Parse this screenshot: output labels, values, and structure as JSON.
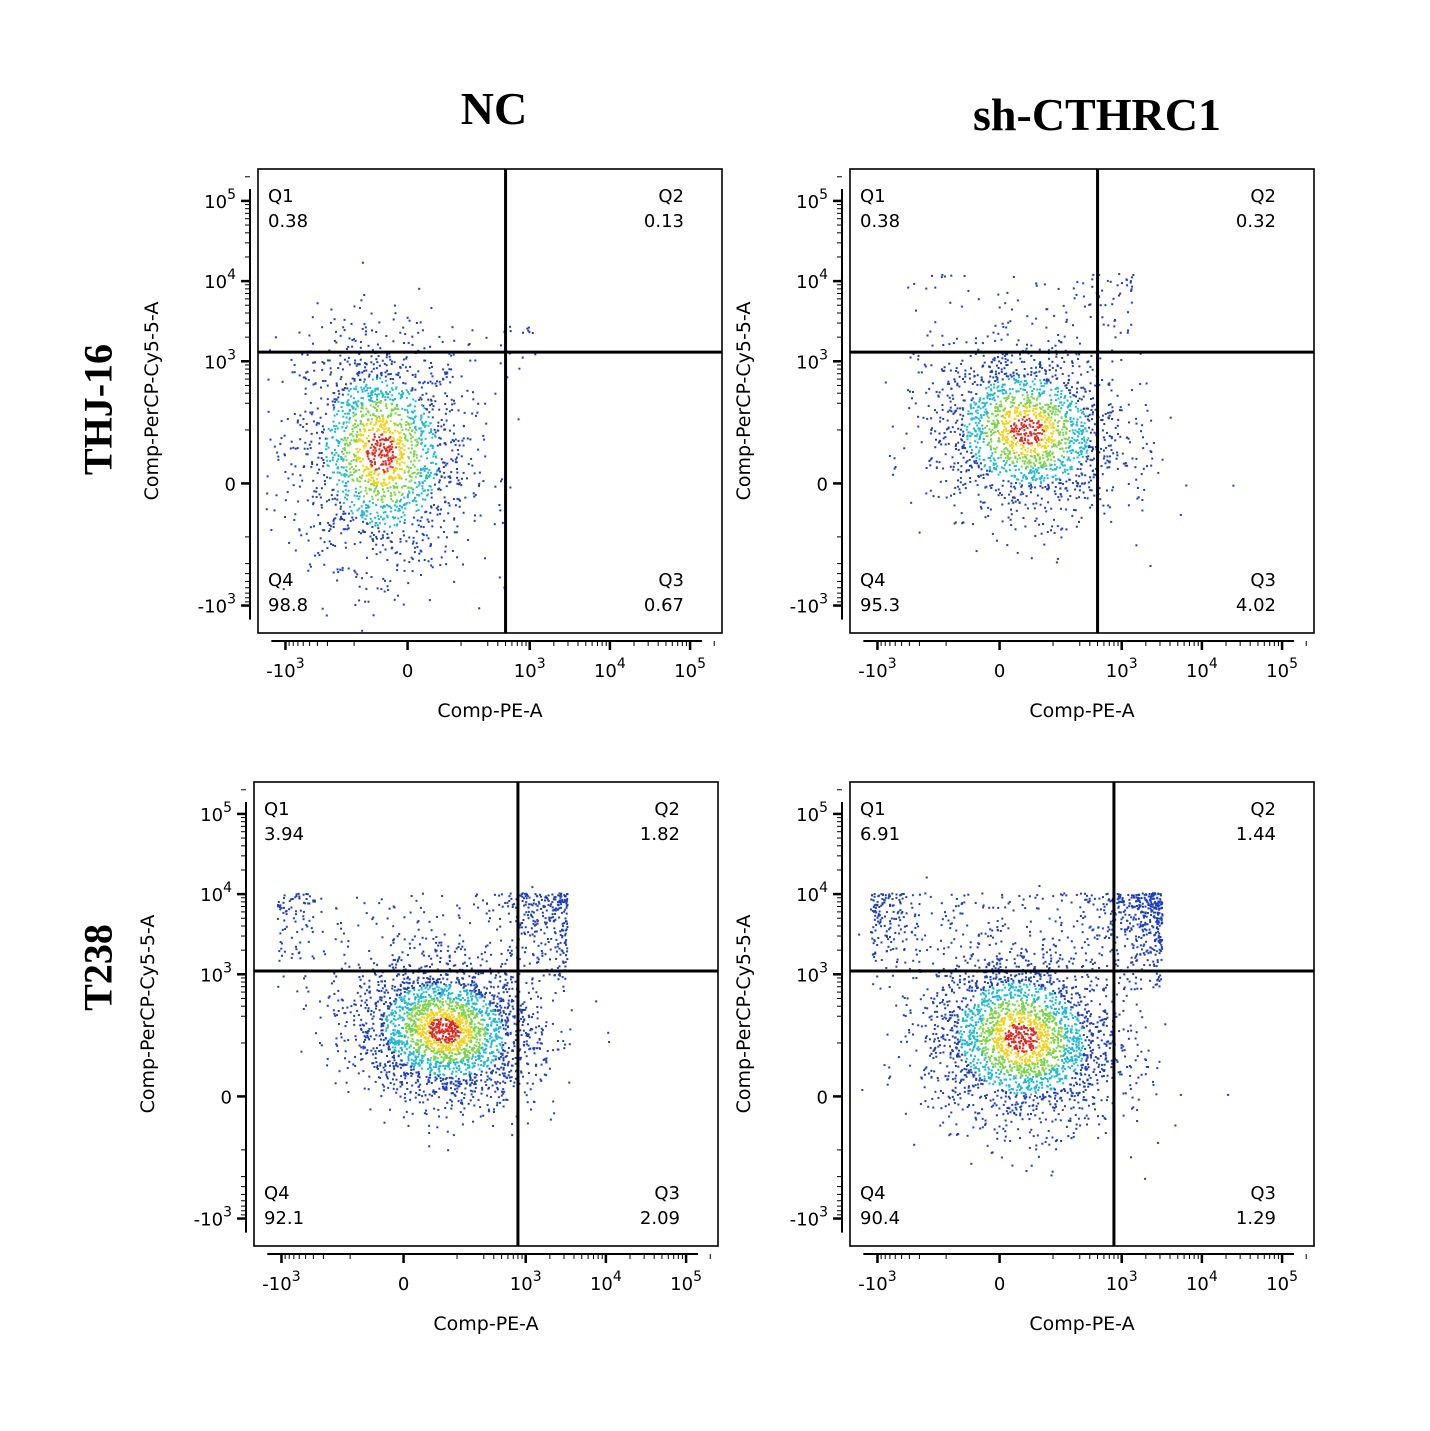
{
  "column_headers": [
    "NC",
    "sh-CTHRC1"
  ],
  "row_headers": [
    "THJ-16",
    "T238"
  ],
  "colors": {
    "density_low": "#1f3fbf",
    "density_mid": "#22b8d0",
    "density_midhigh": "#7dd44a",
    "density_high": "#f2d21b",
    "density_peak": "#e0281e",
    "gate_line": "#000000"
  },
  "chart_data": [
    {
      "type": "scatter",
      "panel": "THJ-16 / NC",
      "xlabel": "Comp-PE-A",
      "ylabel": "Comp-PerCP-Cy5-5-A",
      "x_scale": "biexponential",
      "y_scale": "biexponential",
      "x_ticks": [
        "-10^3",
        "0",
        "10^3",
        "10^4",
        "10^5"
      ],
      "y_ticks": [
        "-10^3",
        "0",
        "10^3",
        "10^4",
        "10^5"
      ],
      "gate": {
        "x": 500,
        "y": 1300
      },
      "quadrants": [
        {
          "name": "Q1",
          "value": "0.38"
        },
        {
          "name": "Q2",
          "value": "0.13"
        },
        {
          "name": "Q3",
          "value": "0.67"
        },
        {
          "name": "Q4",
          "value": "98.8"
        }
      ],
      "population": {
        "main_center": [
          -100,
          120
        ],
        "main_spread": [
          180,
          350
        ]
      }
    },
    {
      "type": "scatter",
      "panel": "THJ-16 / sh-CTHRC1",
      "xlabel": "Comp-PE-A",
      "ylabel": "Comp-PerCP-Cy5-5-A",
      "x_scale": "biexponential",
      "y_scale": "biexponential",
      "x_ticks": [
        "-10^3",
        "0",
        "10^3",
        "10^4",
        "10^5"
      ],
      "y_ticks": [
        "-10^3",
        "0",
        "10^3",
        "10^4",
        "10^5"
      ],
      "gate": {
        "x": 500,
        "y": 1300
      },
      "quadrants": [
        {
          "name": "Q1",
          "value": "0.38"
        },
        {
          "name": "Q2",
          "value": "0.32"
        },
        {
          "name": "Q3",
          "value": "4.02"
        },
        {
          "name": "Q4",
          "value": "95.3"
        }
      ],
      "population": {
        "main_center": [
          100,
          200
        ],
        "main_spread": [
          200,
          320
        ]
      }
    },
    {
      "type": "scatter",
      "panel": "T238 / NC",
      "xlabel": "Comp-PE-A",
      "ylabel": "Comp-PerCP-Cy5-5-A",
      "x_scale": "biexponential",
      "y_scale": "biexponential",
      "x_ticks": [
        "-10^3",
        "0",
        "10^3",
        "10^4",
        "10^5"
      ],
      "y_ticks": [
        "-10^3",
        "0",
        "10^3",
        "10^4",
        "10^5"
      ],
      "gate": {
        "x": 800,
        "y": 1100
      },
      "quadrants": [
        {
          "name": "Q1",
          "value": "3.94"
        },
        {
          "name": "Q2",
          "value": "1.82"
        },
        {
          "name": "Q3",
          "value": "2.09"
        },
        {
          "name": "Q4",
          "value": "92.1"
        }
      ],
      "population": {
        "main_center": [
          150,
          250
        ],
        "main_spread": [
          260,
          380
        ]
      }
    },
    {
      "type": "scatter",
      "panel": "T238 / sh-CTHRC1",
      "xlabel": "Comp-PE-A",
      "ylabel": "Comp-PerCP-Cy5-5-A",
      "x_scale": "biexponential",
      "y_scale": "biexponential",
      "x_ticks": [
        "-10^3",
        "0",
        "10^3",
        "10^4",
        "10^5"
      ],
      "y_ticks": [
        "-10^3",
        "0",
        "10^3",
        "10^4",
        "10^5"
      ],
      "gate": {
        "x": 800,
        "y": 1100
      },
      "quadrants": [
        {
          "name": "Q1",
          "value": "6.91"
        },
        {
          "name": "Q2",
          "value": "1.44"
        },
        {
          "name": "Q3",
          "value": "1.29"
        },
        {
          "name": "Q4",
          "value": "90.4"
        }
      ],
      "population": {
        "main_center": [
          80,
          220
        ],
        "main_spread": [
          200,
          420
        ]
      }
    }
  ]
}
